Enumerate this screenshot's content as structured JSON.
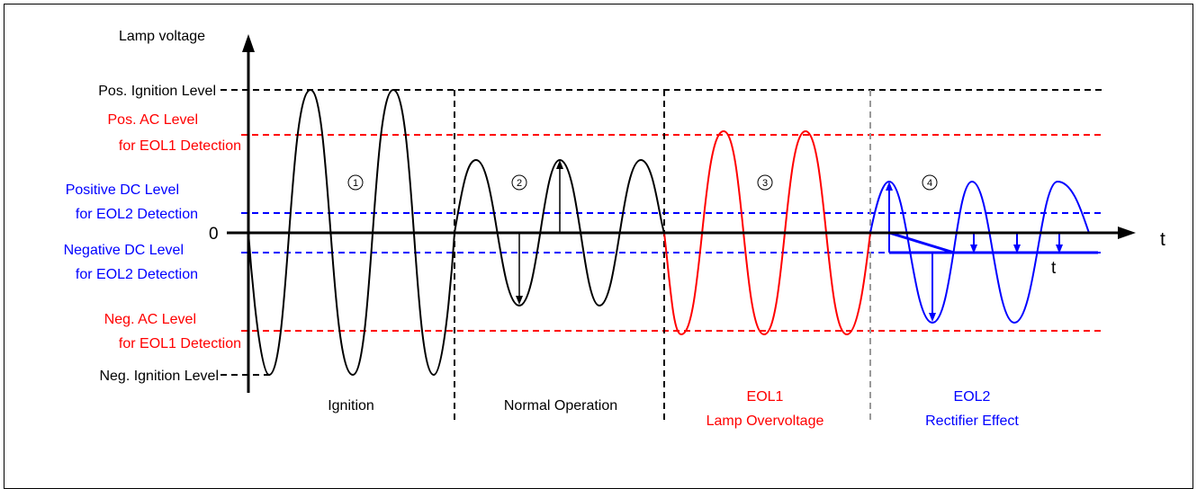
{
  "axis": {
    "y_label": "Lamp voltage",
    "zero_label": "0",
    "t_label": "t",
    "t_sub_label": "t"
  },
  "levels": {
    "pos_ignition": "Pos. Ignition Level",
    "pos_ac_1": "Pos. AC Level",
    "pos_ac_2": "for EOL1 Detection",
    "pos_dc_1": "Positive DC Level",
    "pos_dc_2": "for EOL2 Detection",
    "neg_dc_1": "Negative DC Level",
    "neg_dc_2": "for EOL2 Detection",
    "neg_ac_1": "Neg. AC Level",
    "neg_ac_2": "for EOL1 Detection",
    "neg_ignition": "Neg. Ignition Level"
  },
  "phases": [
    {
      "marker": "1",
      "label": "Ignition",
      "label2": ""
    },
    {
      "marker": "2",
      "label": "Normal Operation",
      "label2": ""
    },
    {
      "marker": "3",
      "label": "EOL1",
      "label2": "Lamp Overvoltage"
    },
    {
      "marker": "4",
      "label": "EOL2",
      "label2": "Rectifier Effect"
    }
  ],
  "colors": {
    "black": "#000000",
    "red": "#ff0000",
    "blue": "#0000ff",
    "gray": "#999999"
  }
}
